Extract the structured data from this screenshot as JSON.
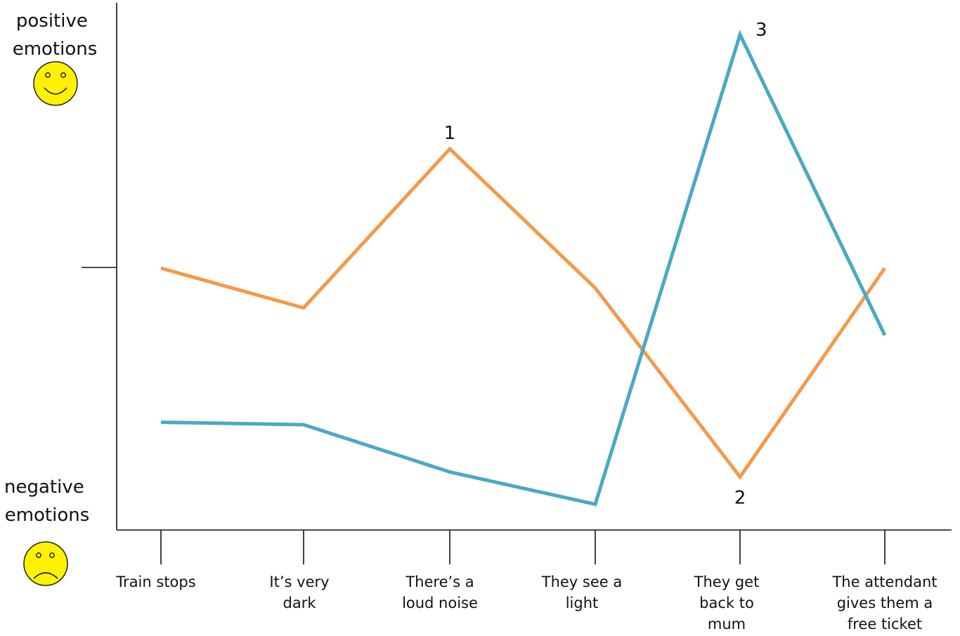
{
  "chart_data": {
    "type": "line",
    "y_axis": {
      "top_label": "positive emotions",
      "bottom_label": "negative emotions",
      "top_icon": "smiley-face-icon",
      "bottom_icon": "sad-face-icon",
      "ylim": [
        0,
        10
      ],
      "midline": 5
    },
    "categories": [
      [
        "Train stops"
      ],
      [
        "It’s very",
        "dark"
      ],
      [
        "There’s a",
        "loud noise"
      ],
      [
        "They see a",
        "light"
      ],
      [
        "They get",
        "back to",
        "mum"
      ],
      [
        "The attendant",
        "gives them a",
        "free ticket"
      ]
    ],
    "series": [
      {
        "color": "#f39a4b",
        "values": [
          5.0,
          4.2,
          7.4,
          4.6,
          0.8,
          5.0
        ]
      },
      {
        "color": "#4aa9c2",
        "values": [
          1.9,
          1.85,
          0.9,
          0.25,
          9.7,
          3.65
        ]
      }
    ],
    "annotations": [
      {
        "text": "1",
        "series": 0,
        "index": 2,
        "position": "above"
      },
      {
        "text": "2",
        "series": 0,
        "index": 4,
        "position": "below"
      },
      {
        "text": "3",
        "series": 1,
        "index": 4,
        "position": "above-right"
      }
    ],
    "colors": {
      "face_fill": "#fff200",
      "face_stroke": "#222222",
      "axis": "#111111"
    }
  }
}
